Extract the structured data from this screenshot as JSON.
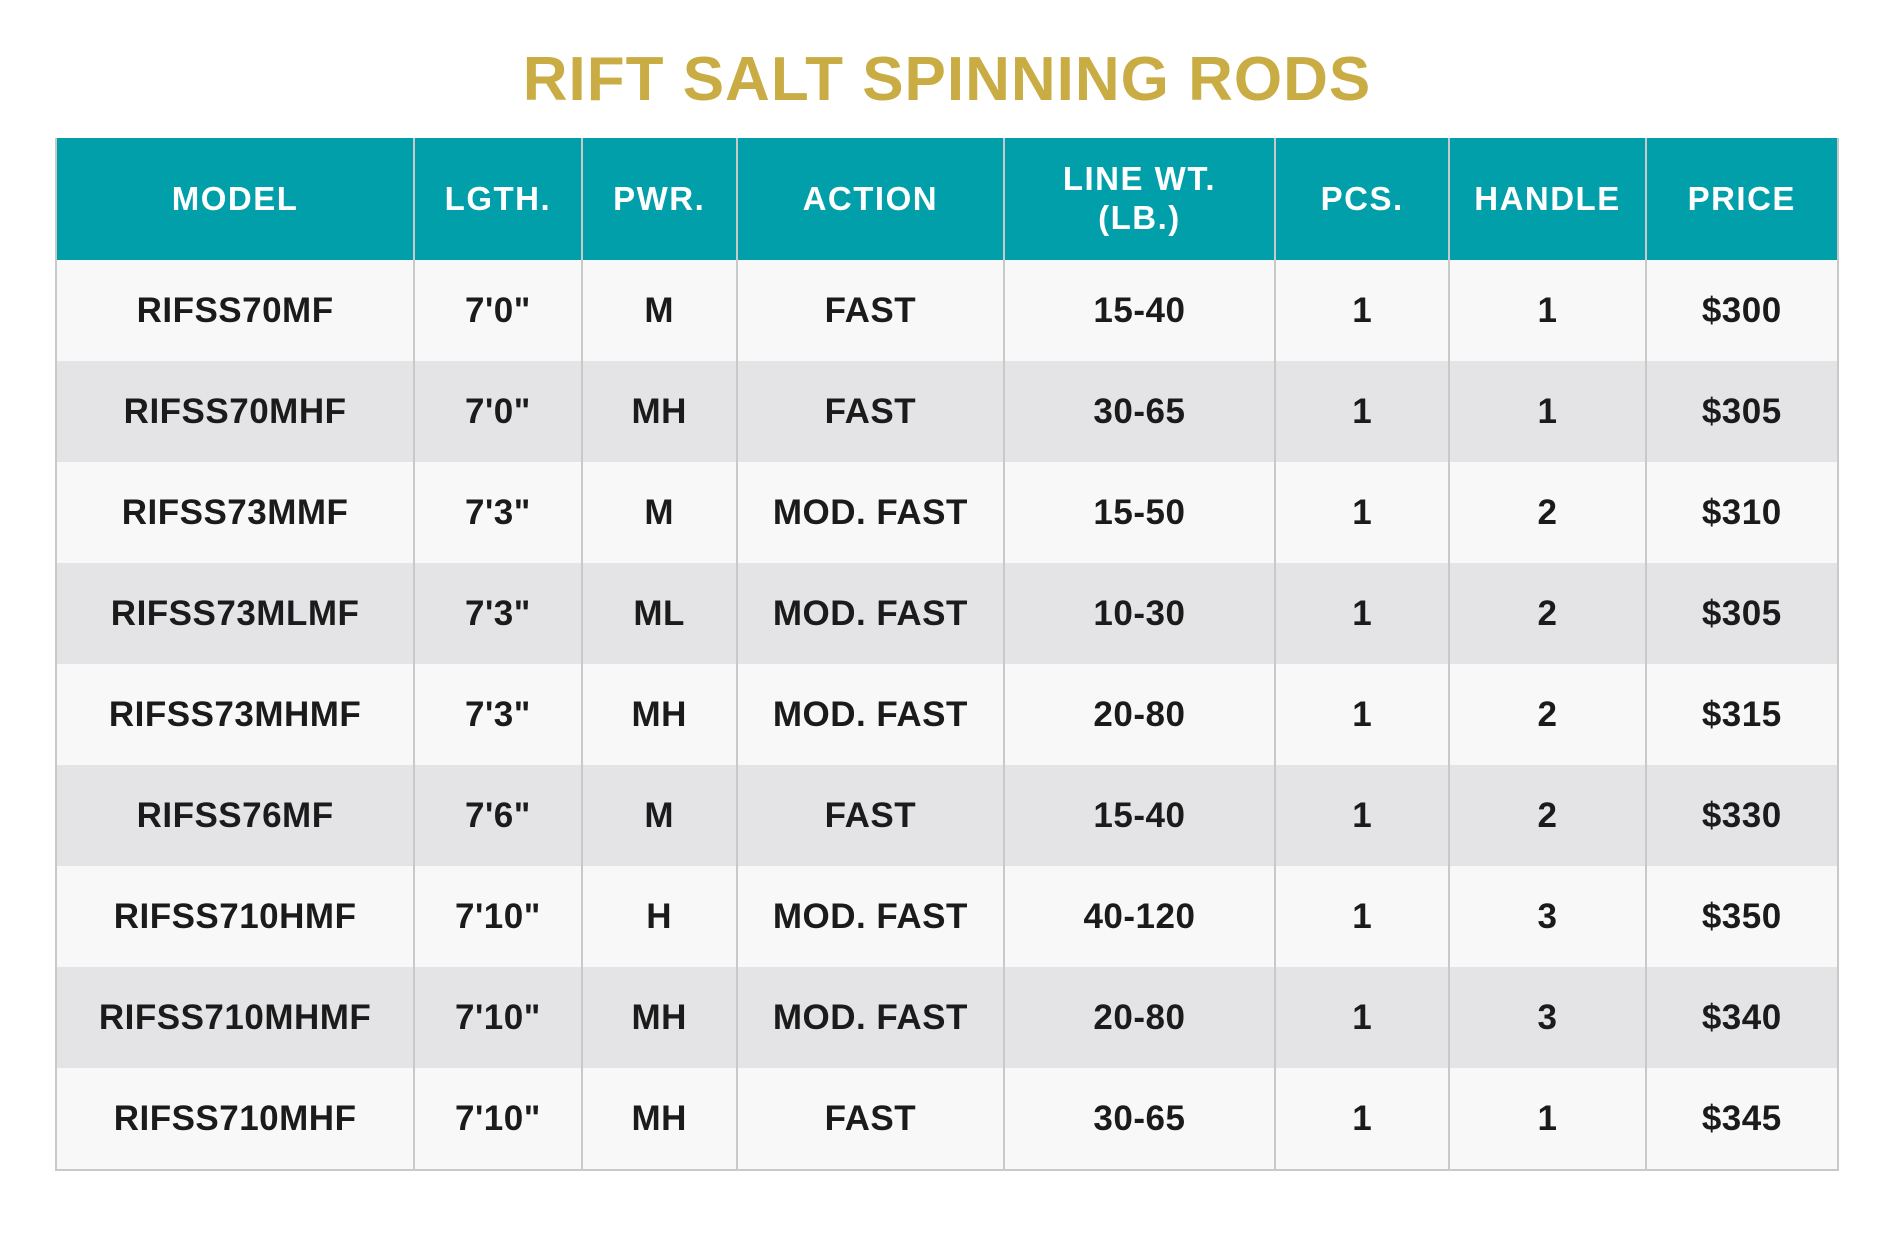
{
  "page_title": "RIFT SALT SPINNING RODS",
  "colors": {
    "title_gold": "#C9AC44",
    "header_teal": "#009FA9",
    "header_text": "#FFFFFF",
    "row_light": "#F8F8F8",
    "row_dark": "#E4E4E6",
    "grid_line": "#C8CACA",
    "cell_text": "#1B1B1B"
  },
  "chart_data": {
    "type": "table",
    "title": "RIFT SALT SPINNING RODS",
    "columns": [
      {
        "key": "model",
        "label": "MODEL"
      },
      {
        "key": "lgth",
        "label": "LGTH."
      },
      {
        "key": "pwr",
        "label": "PWR."
      },
      {
        "key": "action",
        "label": "ACTION"
      },
      {
        "key": "line_wt",
        "label": "LINE WT. (LB.)",
        "lines": [
          "LINE WT.",
          "(LB.)"
        ]
      },
      {
        "key": "pcs",
        "label": "PCS."
      },
      {
        "key": "handle",
        "label": "HANDLE"
      },
      {
        "key": "price",
        "label": "PRICE"
      }
    ],
    "rows": [
      {
        "model": "RIFSS70MF",
        "lgth": "7'0\"",
        "pwr": "M",
        "action": "FAST",
        "line_wt": "15-40",
        "pcs": "1",
        "handle": "1",
        "price": "$300"
      },
      {
        "model": "RIFSS70MHF",
        "lgth": "7'0\"",
        "pwr": "MH",
        "action": "FAST",
        "line_wt": "30-65",
        "pcs": "1",
        "handle": "1",
        "price": "$305"
      },
      {
        "model": "RIFSS73MMF",
        "lgth": "7'3\"",
        "pwr": "M",
        "action": "MOD. FAST",
        "line_wt": "15-50",
        "pcs": "1",
        "handle": "2",
        "price": "$310"
      },
      {
        "model": "RIFSS73MLMF",
        "lgth": "7'3\"",
        "pwr": "ML",
        "action": "MOD. FAST",
        "line_wt": "10-30",
        "pcs": "1",
        "handle": "2",
        "price": "$305"
      },
      {
        "model": "RIFSS73MHMF",
        "lgth": "7'3\"",
        "pwr": "MH",
        "action": "MOD. FAST",
        "line_wt": "20-80",
        "pcs": "1",
        "handle": "2",
        "price": "$315"
      },
      {
        "model": "RIFSS76MF",
        "lgth": "7'6\"",
        "pwr": "M",
        "action": "FAST",
        "line_wt": "15-40",
        "pcs": "1",
        "handle": "2",
        "price": "$330"
      },
      {
        "model": "RIFSS710HMF",
        "lgth": "7'10\"",
        "pwr": "H",
        "action": "MOD. FAST",
        "line_wt": "40-120",
        "pcs": "1",
        "handle": "3",
        "price": "$350"
      },
      {
        "model": "RIFSS710MHMF",
        "lgth": "7'10\"",
        "pwr": "MH",
        "action": "MOD. FAST",
        "line_wt": "20-80",
        "pcs": "1",
        "handle": "3",
        "price": "$340"
      },
      {
        "model": "RIFSS710MHF",
        "lgth": "7'10\"",
        "pwr": "MH",
        "action": "FAST",
        "line_wt": "30-65",
        "pcs": "1",
        "handle": "1",
        "price": "$345"
      }
    ]
  }
}
